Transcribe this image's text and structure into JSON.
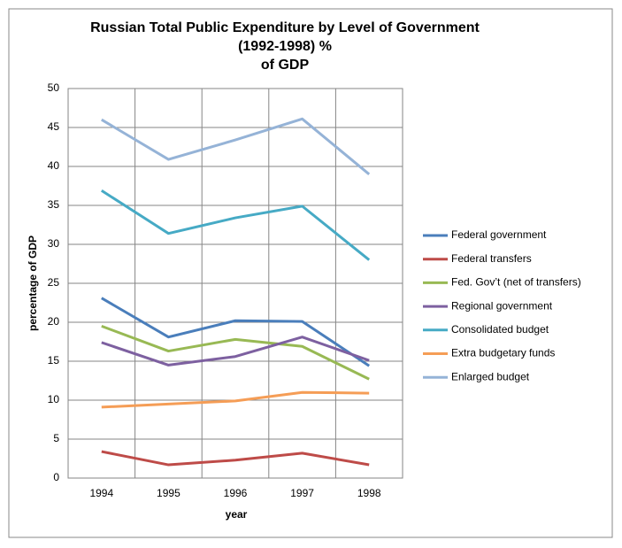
{
  "chart_data": {
    "type": "line",
    "title": [
      "Russian Total Public Expenditure by Level of Government",
      "(1992-1998) %",
      "of GDP"
    ],
    "xlabel": "year",
    "ylabel": "percentage of GDP",
    "categories": [
      "1994",
      "1995",
      "1996",
      "1997",
      "1998"
    ],
    "series": [
      {
        "name": "Federal government",
        "color": "#4a7ebb",
        "values": [
          23.1,
          18.1,
          20.2,
          20.1,
          14.4
        ]
      },
      {
        "name": "Federal transfers",
        "color": "#be4b48",
        "values": [
          3.4,
          1.7,
          2.3,
          3.2,
          1.7
        ]
      },
      {
        "name": "Fed. Gov’t (net of transfers)",
        "color": "#98b954",
        "values": [
          19.5,
          16.3,
          17.8,
          16.9,
          12.7
        ]
      },
      {
        "name": "Regional government",
        "color": "#7d60a0",
        "values": [
          17.4,
          14.5,
          15.6,
          18.1,
          15.1
        ]
      },
      {
        "name": "Consolidated budget",
        "color": "#46aac5",
        "values": [
          36.9,
          31.4,
          33.4,
          34.9,
          28.0
        ]
      },
      {
        "name": "Extra budgetary funds",
        "color": "#f59d56",
        "values": [
          9.1,
          9.5,
          9.9,
          11.0,
          10.9
        ]
      },
      {
        "name": "Enlarged budget",
        "color": "#95b3d7",
        "values": [
          46.0,
          40.9,
          43.4,
          46.1,
          39.0
        ]
      }
    ],
    "ylim": [
      0,
      50
    ],
    "yticks": [
      0,
      5,
      10,
      15,
      20,
      25,
      30,
      35,
      40,
      45,
      50
    ],
    "grid": true,
    "legend": "right"
  }
}
